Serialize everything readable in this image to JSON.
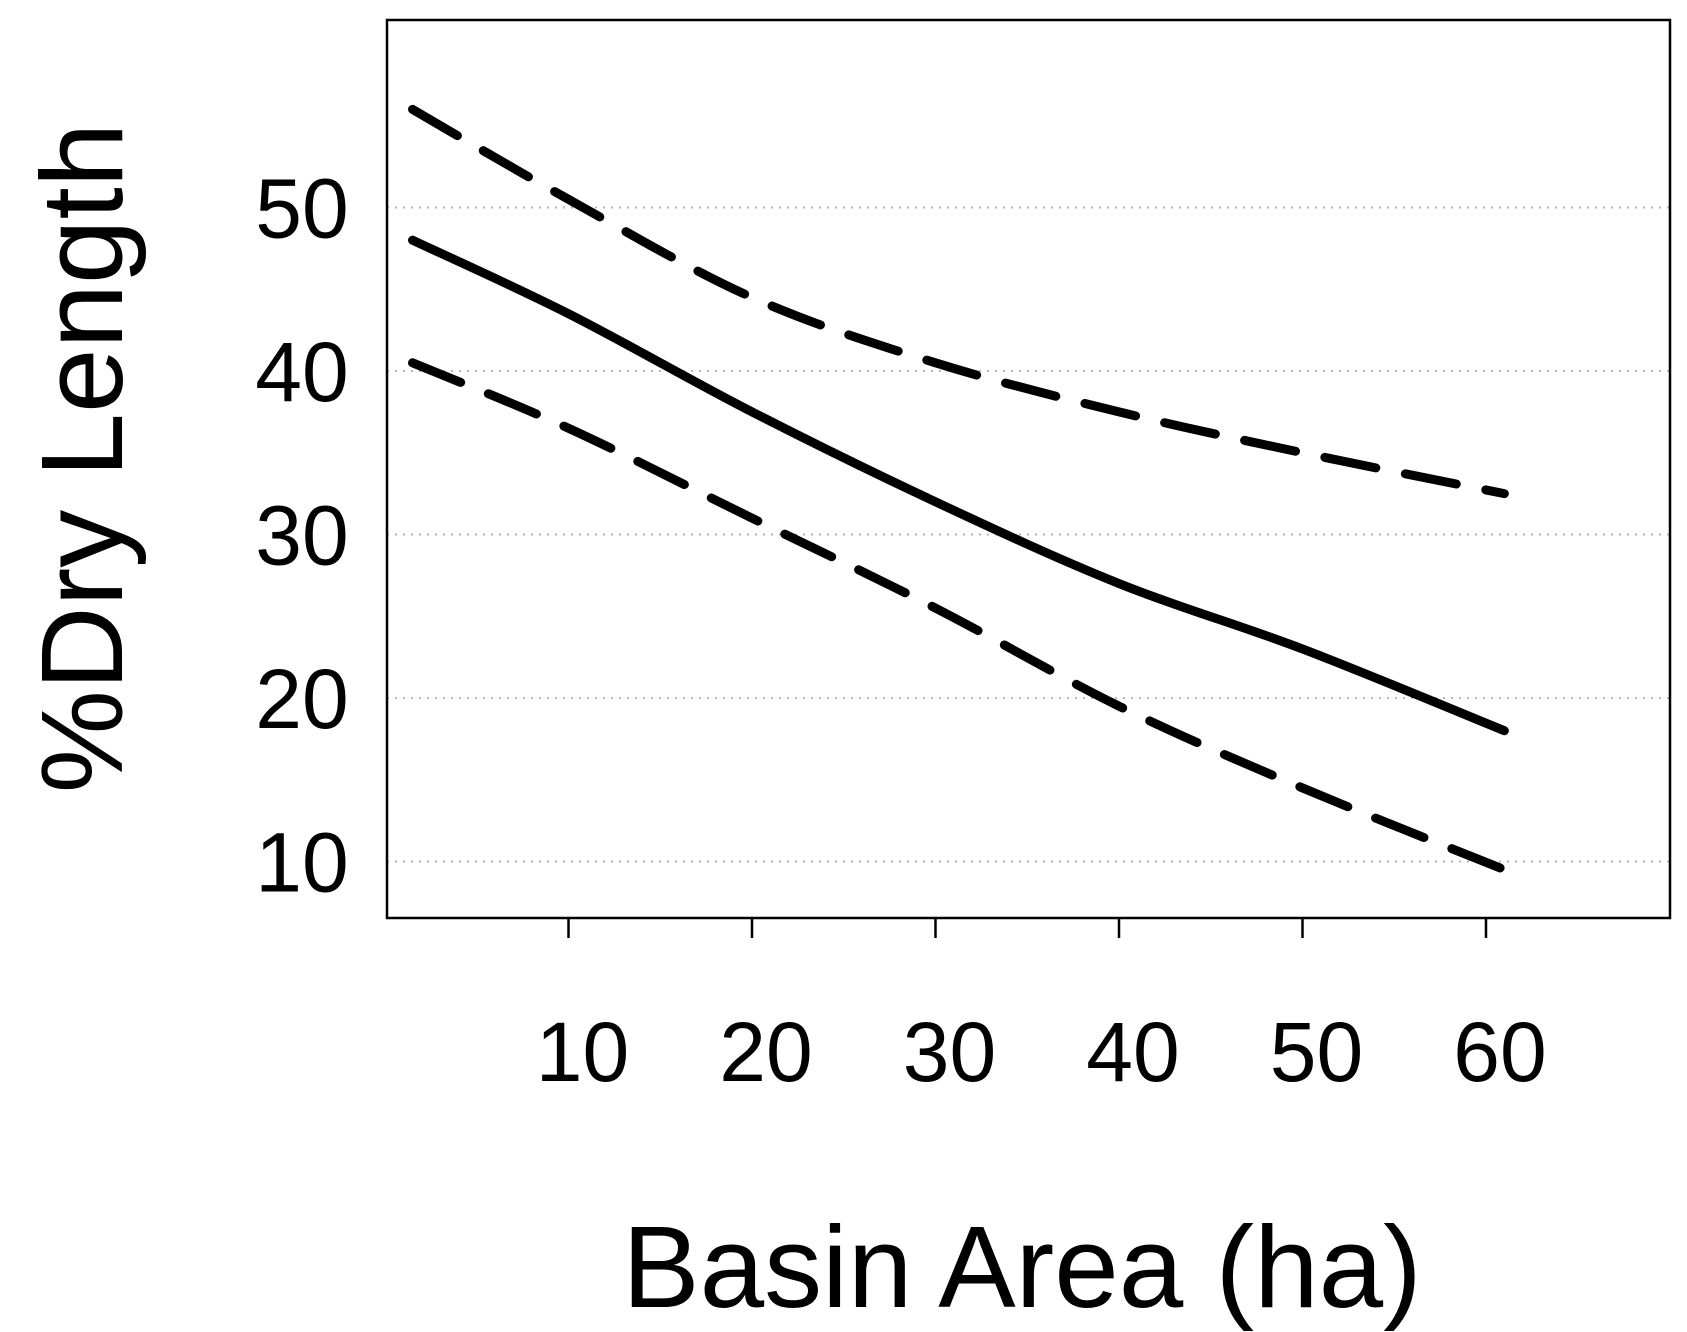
{
  "chart_data": {
    "type": "line",
    "title": "",
    "xlabel": "Basin Area (ha)",
    "ylabel": "%Dry Length",
    "xlim": [
      0,
      70
    ],
    "ylim": [
      5,
      57
    ],
    "x_ticks": [
      10,
      20,
      30,
      40,
      50,
      60
    ],
    "y_ticks": [
      10,
      20,
      30,
      40,
      50
    ],
    "grid": "horizontal dotted",
    "legend": "none",
    "series": [
      {
        "style": "solid",
        "color": "#000000",
        "x": [
          1.5,
          10,
          20,
          30,
          40,
          50,
          61
        ],
        "y": [
          48,
          43.5,
          37.5,
          32,
          27,
          23,
          18
        ]
      },
      {
        "style": "dashed",
        "color": "#000000",
        "x": [
          1.5,
          10,
          20,
          30,
          40,
          50,
          61
        ],
        "y": [
          56,
          50.5,
          44.5,
          40.5,
          37.5,
          35,
          32.5
        ]
      },
      {
        "style": "dashed",
        "color": "#000000",
        "x": [
          1.5,
          10,
          20,
          30,
          40,
          50,
          61
        ],
        "y": [
          40.5,
          36.5,
          31,
          25.5,
          19.5,
          14.5,
          9.5
        ]
      }
    ]
  }
}
